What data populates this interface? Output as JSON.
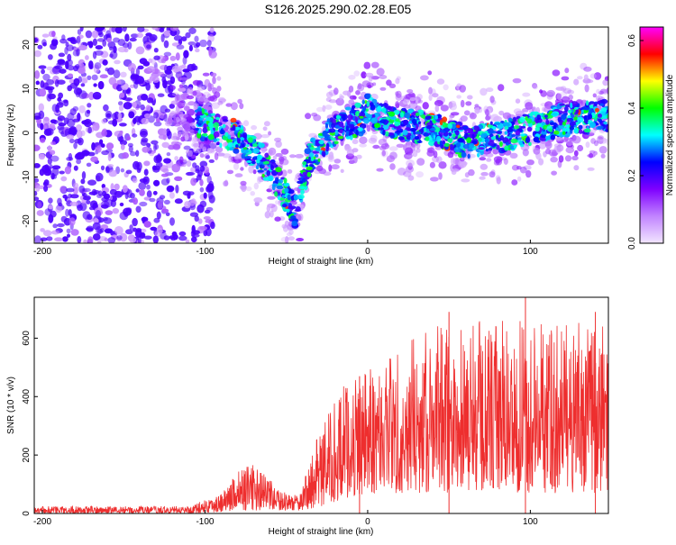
{
  "title": "S126.2025.290.02.28.E05",
  "chart_data": [
    {
      "type": "heatmap",
      "name": "spectrogram",
      "xlabel": "Height of straight line (km)",
      "ylabel": "Frequency (Hz)",
      "xlim": [
        -205,
        148
      ],
      "ylim": [
        -25,
        24
      ],
      "xticks": [
        -200,
        -100,
        0,
        100
      ],
      "yticks": [
        -20,
        -10,
        0,
        10,
        20
      ],
      "colorbar": {
        "label": "Normalized spectral amplitude",
        "range": [
          0.0,
          0.64
        ],
        "ticks": [
          0.0,
          0.2,
          0.4,
          0.6
        ],
        "tick_labels": [
          "0.0",
          "0.2",
          "0.4",
          "0.6"
        ],
        "colors": [
          "#f2e6ff",
          "#c184ff",
          "#7f00ff",
          "#0000ff",
          "#00ffff",
          "#00ff00",
          "#ffff00",
          "#ff0000",
          "#ff00ff"
        ]
      },
      "ridge_center_hz": [
        {
          "x": -125,
          "y": 5
        },
        {
          "x": -100,
          "y": 2
        },
        {
          "x": -80,
          "y": -1
        },
        {
          "x": -60,
          "y": -8
        },
        {
          "x": -45,
          "y": -18
        },
        {
          "x": -35,
          "y": -5
        },
        {
          "x": -20,
          "y": 1
        },
        {
          "x": -5,
          "y": 3
        },
        {
          "x": 0,
          "y": 5
        },
        {
          "x": 20,
          "y": 2
        },
        {
          "x": 40,
          "y": 1
        },
        {
          "x": 60,
          "y": -2
        },
        {
          "x": 80,
          "y": -1
        },
        {
          "x": 100,
          "y": 1
        },
        {
          "x": 120,
          "y": 3
        },
        {
          "x": 148,
          "y": 4
        }
      ],
      "noise_region_km": [
        -205,
        -110
      ]
    },
    {
      "type": "line",
      "name": "snr",
      "xlabel": "Height of straight line (km)",
      "ylabel": "SNR (10 * v/v)",
      "xlim": [
        -205,
        148
      ],
      "ylim": [
        0,
        740
      ],
      "xticks": [
        -200,
        -100,
        0,
        100
      ],
      "yticks": [
        0,
        200,
        400,
        600
      ],
      "line_color": "#ee2e2e",
      "envelope": [
        {
          "x": -205,
          "lo": 0,
          "hi": 25
        },
        {
          "x": -110,
          "lo": 0,
          "hi": 25
        },
        {
          "x": -90,
          "lo": 5,
          "hi": 70
        },
        {
          "x": -80,
          "lo": 10,
          "hi": 150
        },
        {
          "x": -70,
          "lo": 10,
          "hi": 170
        },
        {
          "x": -62,
          "lo": 10,
          "hi": 130
        },
        {
          "x": -55,
          "lo": 10,
          "hi": 80
        },
        {
          "x": -42,
          "lo": 10,
          "hi": 60
        },
        {
          "x": -30,
          "lo": 20,
          "hi": 280
        },
        {
          "x": -15,
          "lo": 50,
          "hi": 440
        },
        {
          "x": 0,
          "lo": 70,
          "hi": 500
        },
        {
          "x": 20,
          "lo": 70,
          "hi": 580
        },
        {
          "x": 50,
          "lo": 70,
          "hi": 660
        },
        {
          "x": 100,
          "lo": 70,
          "hi": 660
        },
        {
          "x": 148,
          "lo": 70,
          "hi": 650
        }
      ],
      "peaks": [
        {
          "x": -5,
          "y": 470
        },
        {
          "x": 50,
          "y": 690
        },
        {
          "x": 97,
          "y": 740
        },
        {
          "x": 140,
          "y": 690
        }
      ]
    }
  ]
}
